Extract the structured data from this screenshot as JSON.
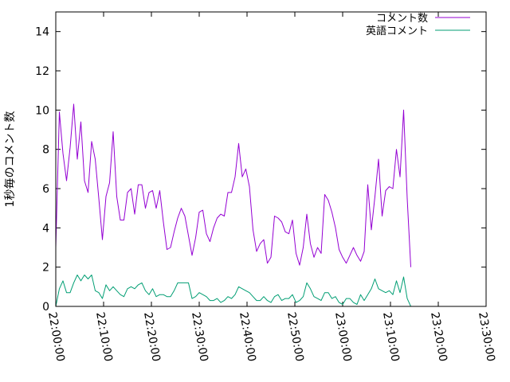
{
  "chart_data": {
    "type": "line",
    "title": "",
    "xlabel": "",
    "ylabel": "1秒毎のコメント数",
    "x_range": [
      "22:00:00",
      "23:30:00"
    ],
    "ylim": [
      0,
      15
    ],
    "x_ticks": [
      "22:00:00",
      "22:10:00",
      "22:20:00",
      "22:30:00",
      "22:40:00",
      "22:50:00",
      "23:00:00",
      "23:10:00",
      "23:20:00",
      "23:30:00"
    ],
    "y_ticks": [
      "0",
      "2",
      "4",
      "6",
      "8",
      "10",
      "12",
      "14"
    ],
    "grid": false,
    "legend_position": "top-right",
    "series": [
      {
        "name": "コメント数",
        "color": "#9400d3",
        "points": [
          [
            "22:00:00",
            3.0
          ],
          [
            "22:00:45",
            9.9
          ],
          [
            "22:01:30",
            7.8
          ],
          [
            "22:02:15",
            6.4
          ],
          [
            "22:03:00",
            8.1
          ],
          [
            "22:03:45",
            10.3
          ],
          [
            "22:04:30",
            7.5
          ],
          [
            "22:05:15",
            9.4
          ],
          [
            "22:06:00",
            6.4
          ],
          [
            "22:06:45",
            5.8
          ],
          [
            "22:07:30",
            8.4
          ],
          [
            "22:08:15",
            7.5
          ],
          [
            "22:09:00",
            5.5
          ],
          [
            "22:09:45",
            3.4
          ],
          [
            "22:10:30",
            5.6
          ],
          [
            "22:11:15",
            6.3
          ],
          [
            "22:12:00",
            8.9
          ],
          [
            "22:12:45",
            5.6
          ],
          [
            "22:13:30",
            4.4
          ],
          [
            "22:14:15",
            4.4
          ],
          [
            "22:15:00",
            5.8
          ],
          [
            "22:15:45",
            6.0
          ],
          [
            "22:16:30",
            4.7
          ],
          [
            "22:17:15",
            6.2
          ],
          [
            "22:18:00",
            6.2
          ],
          [
            "22:18:45",
            5.0
          ],
          [
            "22:19:30",
            5.8
          ],
          [
            "22:20:15",
            5.9
          ],
          [
            "22:21:00",
            5.0
          ],
          [
            "22:21:45",
            5.9
          ],
          [
            "22:22:30",
            4.3
          ],
          [
            "22:23:15",
            2.9
          ],
          [
            "22:24:00",
            3.0
          ],
          [
            "22:24:45",
            3.8
          ],
          [
            "22:25:30",
            4.5
          ],
          [
            "22:26:15",
            5.0
          ],
          [
            "22:27:00",
            4.6
          ],
          [
            "22:27:45",
            3.6
          ],
          [
            "22:28:30",
            2.6
          ],
          [
            "22:29:15",
            3.5
          ],
          [
            "22:30:00",
            4.8
          ],
          [
            "22:30:45",
            4.9
          ],
          [
            "22:31:30",
            3.7
          ],
          [
            "22:32:15",
            3.3
          ],
          [
            "22:33:00",
            4.0
          ],
          [
            "22:33:45",
            4.5
          ],
          [
            "22:34:30",
            4.7
          ],
          [
            "22:35:15",
            4.6
          ],
          [
            "22:36:00",
            5.8
          ],
          [
            "22:36:45",
            5.8
          ],
          [
            "22:37:30",
            6.6
          ],
          [
            "22:38:15",
            8.3
          ],
          [
            "22:39:00",
            6.6
          ],
          [
            "22:39:45",
            7.0
          ],
          [
            "22:40:30",
            6.1
          ],
          [
            "22:41:15",
            3.9
          ],
          [
            "22:42:00",
            2.8
          ],
          [
            "22:42:45",
            3.2
          ],
          [
            "22:43:30",
            3.4
          ],
          [
            "22:44:15",
            2.2
          ],
          [
            "22:45:00",
            2.5
          ],
          [
            "22:45:45",
            4.6
          ],
          [
            "22:46:30",
            4.5
          ],
          [
            "22:47:15",
            4.3
          ],
          [
            "22:48:00",
            3.8
          ],
          [
            "22:48:45",
            3.7
          ],
          [
            "22:49:30",
            4.4
          ],
          [
            "22:50:15",
            2.7
          ],
          [
            "22:51:00",
            2.1
          ],
          [
            "22:51:45",
            3.0
          ],
          [
            "22:52:30",
            4.7
          ],
          [
            "22:53:15",
            3.2
          ],
          [
            "22:54:00",
            2.5
          ],
          [
            "22:54:45",
            3.0
          ],
          [
            "22:55:30",
            2.7
          ],
          [
            "22:56:15",
            5.7
          ],
          [
            "22:57:00",
            5.4
          ],
          [
            "22:57:45",
            4.8
          ],
          [
            "22:58:30",
            4.0
          ],
          [
            "22:59:15",
            2.9
          ],
          [
            "23:00:00",
            2.5
          ],
          [
            "23:00:45",
            2.2
          ],
          [
            "23:01:30",
            2.6
          ],
          [
            "23:02:15",
            3.0
          ],
          [
            "23:03:00",
            2.6
          ],
          [
            "23:03:45",
            2.3
          ],
          [
            "23:04:30",
            2.8
          ],
          [
            "23:05:15",
            6.2
          ],
          [
            "23:06:00",
            3.9
          ],
          [
            "23:06:45",
            5.6
          ],
          [
            "23:07:30",
            7.5
          ],
          [
            "23:08:15",
            4.6
          ],
          [
            "23:09:00",
            5.9
          ],
          [
            "23:09:45",
            6.1
          ],
          [
            "23:10:30",
            6.0
          ],
          [
            "23:11:15",
            8.0
          ],
          [
            "23:12:00",
            6.6
          ],
          [
            "23:12:45",
            10.0
          ],
          [
            "23:13:30",
            5.5
          ],
          [
            "23:14:15",
            2.0
          ]
        ]
      },
      {
        "name": "英語コメント",
        "color": "#009e73",
        "points": [
          [
            "22:00:00",
            0.0
          ],
          [
            "22:00:45",
            0.9
          ],
          [
            "22:01:30",
            1.3
          ],
          [
            "22:02:15",
            0.7
          ],
          [
            "22:03:00",
            0.7
          ],
          [
            "22:03:45",
            1.2
          ],
          [
            "22:04:30",
            1.6
          ],
          [
            "22:05:15",
            1.3
          ],
          [
            "22:06:00",
            1.6
          ],
          [
            "22:06:45",
            1.4
          ],
          [
            "22:07:30",
            1.6
          ],
          [
            "22:08:15",
            0.8
          ],
          [
            "22:09:00",
            0.7
          ],
          [
            "22:09:45",
            0.4
          ],
          [
            "22:10:30",
            1.1
          ],
          [
            "22:11:15",
            0.8
          ],
          [
            "22:12:00",
            1.0
          ],
          [
            "22:12:45",
            0.8
          ],
          [
            "22:13:30",
            0.6
          ],
          [
            "22:14:15",
            0.5
          ],
          [
            "22:15:00",
            0.9
          ],
          [
            "22:15:45",
            1.0
          ],
          [
            "22:16:30",
            0.9
          ],
          [
            "22:17:15",
            1.1
          ],
          [
            "22:18:00",
            1.2
          ],
          [
            "22:18:45",
            0.8
          ],
          [
            "22:19:30",
            0.6
          ],
          [
            "22:20:15",
            0.9
          ],
          [
            "22:21:00",
            0.5
          ],
          [
            "22:21:45",
            0.6
          ],
          [
            "22:22:30",
            0.6
          ],
          [
            "22:23:15",
            0.5
          ],
          [
            "22:24:00",
            0.5
          ],
          [
            "22:24:45",
            0.8
          ],
          [
            "22:25:30",
            1.2
          ],
          [
            "22:26:15",
            1.2
          ],
          [
            "22:27:00",
            1.2
          ],
          [
            "22:27:45",
            1.2
          ],
          [
            "22:28:30",
            0.4
          ],
          [
            "22:29:15",
            0.5
          ],
          [
            "22:30:00",
            0.7
          ],
          [
            "22:30:45",
            0.6
          ],
          [
            "22:31:30",
            0.5
          ],
          [
            "22:32:15",
            0.3
          ],
          [
            "22:33:00",
            0.3
          ],
          [
            "22:33:45",
            0.4
          ],
          [
            "22:34:30",
            0.2
          ],
          [
            "22:35:15",
            0.3
          ],
          [
            "22:36:00",
            0.5
          ],
          [
            "22:36:45",
            0.4
          ],
          [
            "22:37:30",
            0.6
          ],
          [
            "22:38:15",
            1.0
          ],
          [
            "22:39:00",
            0.9
          ],
          [
            "22:39:45",
            0.8
          ],
          [
            "22:40:30",
            0.7
          ],
          [
            "22:41:15",
            0.5
          ],
          [
            "22:42:00",
            0.3
          ],
          [
            "22:42:45",
            0.3
          ],
          [
            "22:43:30",
            0.5
          ],
          [
            "22:44:15",
            0.3
          ],
          [
            "22:45:00",
            0.2
          ],
          [
            "22:45:45",
            0.5
          ],
          [
            "22:46:30",
            0.6
          ],
          [
            "22:47:15",
            0.3
          ],
          [
            "22:48:00",
            0.4
          ],
          [
            "22:48:45",
            0.4
          ],
          [
            "22:49:30",
            0.6
          ],
          [
            "22:50:15",
            0.2
          ],
          [
            "22:51:00",
            0.3
          ],
          [
            "22:51:45",
            0.5
          ],
          [
            "22:52:30",
            1.2
          ],
          [
            "22:53:15",
            0.9
          ],
          [
            "22:54:00",
            0.5
          ],
          [
            "22:54:45",
            0.4
          ],
          [
            "22:55:30",
            0.3
          ],
          [
            "22:56:15",
            0.7
          ],
          [
            "22:57:00",
            0.7
          ],
          [
            "22:57:45",
            0.4
          ],
          [
            "22:58:30",
            0.5
          ],
          [
            "22:59:15",
            0.2
          ],
          [
            "23:00:00",
            0.1
          ],
          [
            "23:00:45",
            0.4
          ],
          [
            "23:01:30",
            0.4
          ],
          [
            "23:02:15",
            0.2
          ],
          [
            "23:03:00",
            0.1
          ],
          [
            "23:03:45",
            0.6
          ],
          [
            "23:04:30",
            0.3
          ],
          [
            "23:05:15",
            0.6
          ],
          [
            "23:06:00",
            0.9
          ],
          [
            "23:06:45",
            1.4
          ],
          [
            "23:07:30",
            0.9
          ],
          [
            "23:08:15",
            0.8
          ],
          [
            "23:09:00",
            0.7
          ],
          [
            "23:09:45",
            0.8
          ],
          [
            "23:10:30",
            0.6
          ],
          [
            "23:11:15",
            1.3
          ],
          [
            "23:12:00",
            0.7
          ],
          [
            "23:12:45",
            1.5
          ],
          [
            "23:13:30",
            0.4
          ],
          [
            "23:14:15",
            0.0
          ]
        ]
      }
    ]
  }
}
